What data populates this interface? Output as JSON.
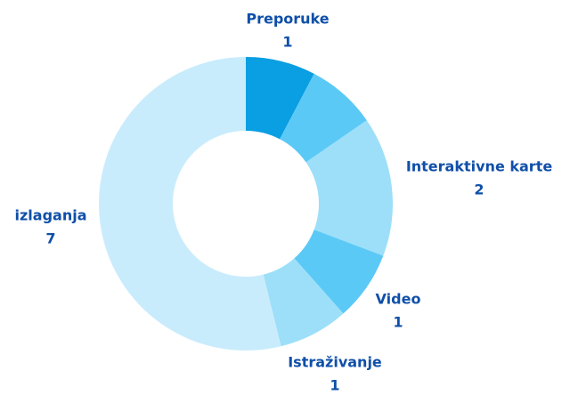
{
  "chart_data": {
    "type": "donut",
    "categories": [
      "Preporuke",
      null,
      "Interaktivne karte",
      "Video",
      "Istraživanje",
      "izlaganja"
    ],
    "values": [
      1,
      1,
      2,
      1,
      1,
      7
    ],
    "colors": [
      "#0a9ee2",
      "#5bc9f6",
      "#9ddff9",
      "#5bc9f6",
      "#9ddff9",
      "#c9ecfc"
    ]
  }
}
